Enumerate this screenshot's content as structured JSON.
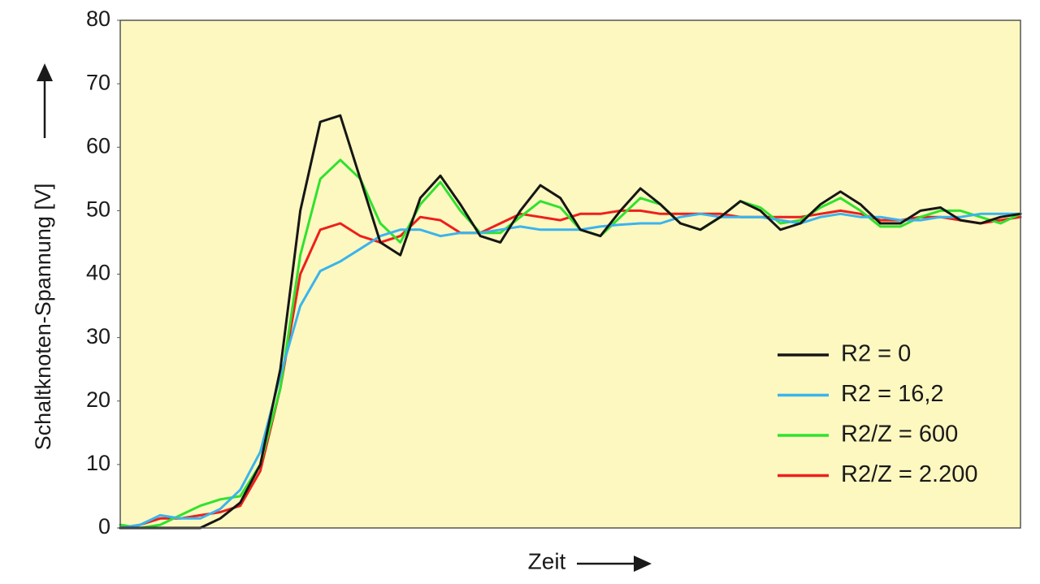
{
  "chart_data": {
    "type": "line",
    "ylabel": "Schaltknoten-Spannung [V]",
    "xlabel": "Zeit",
    "categories": [
      null,
      null,
      null,
      null,
      null,
      null,
      null,
      null,
      null,
      null,
      null,
      null,
      null,
      null,
      null,
      null,
      null,
      null,
      null,
      null,
      null,
      null,
      null,
      null,
      null,
      null,
      null,
      null,
      null,
      null,
      null,
      null,
      null,
      null,
      null,
      null,
      null,
      null,
      null,
      null,
      null,
      null,
      null,
      null,
      null,
      null
    ],
    "ylim": [
      0,
      80
    ],
    "yticks": [
      0,
      10,
      20,
      30,
      40,
      50,
      60,
      70,
      80
    ],
    "grid": false,
    "legend": "lower right",
    "background": "#fdf8bf",
    "series": [
      {
        "name": "R2 = 0",
        "color": "#161616",
        "values": [
          0,
          0,
          0,
          0,
          0,
          1.5,
          4,
          10,
          25,
          50,
          64,
          65,
          55,
          45,
          43,
          52,
          55.5,
          51,
          46,
          45,
          50,
          54,
          52,
          47,
          46,
          50,
          53.5,
          51,
          48,
          47,
          49,
          51.5,
          50,
          47,
          48,
          51,
          53,
          51,
          48,
          48,
          50,
          50.5,
          48.5,
          48,
          49,
          49.5
        ]
      },
      {
        "name": "R2 = 16,2",
        "color": "#3ab4ee",
        "values": [
          0,
          0.5,
          2,
          1.5,
          1.5,
          3,
          6,
          12,
          24,
          35,
          40.5,
          42,
          44,
          46,
          47,
          47,
          46,
          46.5,
          46.5,
          47,
          47.5,
          47,
          47,
          47,
          47.5,
          47.8,
          48,
          48,
          49,
          49.5,
          49,
          49,
          49,
          48.5,
          48,
          49,
          49.5,
          49,
          49,
          48.5,
          48.5,
          49,
          49,
          49.5,
          49.5,
          49.5
        ]
      },
      {
        "name": "R2/Z = 600",
        "color": "#2fe22f",
        "values": [
          0.5,
          0,
          0.5,
          2,
          3.5,
          4.5,
          5,
          10,
          22,
          43,
          55,
          58,
          55,
          48,
          45,
          51,
          54.5,
          50,
          46.5,
          46.5,
          49,
          51.5,
          50.5,
          47,
          46,
          49,
          52,
          51,
          48,
          47,
          49,
          51.5,
          50.5,
          48,
          48.5,
          50.5,
          52,
          50,
          47.5,
          47.5,
          49,
          50,
          50,
          49,
          48,
          49.5
        ]
      },
      {
        "name": "R2/Z = 2.200",
        "color": "#ee1f1c",
        "values": [
          0,
          0.5,
          1.5,
          1.5,
          2,
          2.5,
          3.5,
          9,
          22,
          40,
          47,
          48,
          46,
          45,
          46,
          49,
          48.5,
          46.5,
          46.5,
          48,
          49.5,
          49,
          48.5,
          49.5,
          49.5,
          50,
          50,
          49.5,
          49.5,
          49.5,
          49.5,
          49,
          49,
          49,
          49,
          49.5,
          50,
          49.5,
          48.5,
          48.5,
          49,
          49,
          48.5,
          48,
          48.5,
          49
        ]
      }
    ]
  }
}
